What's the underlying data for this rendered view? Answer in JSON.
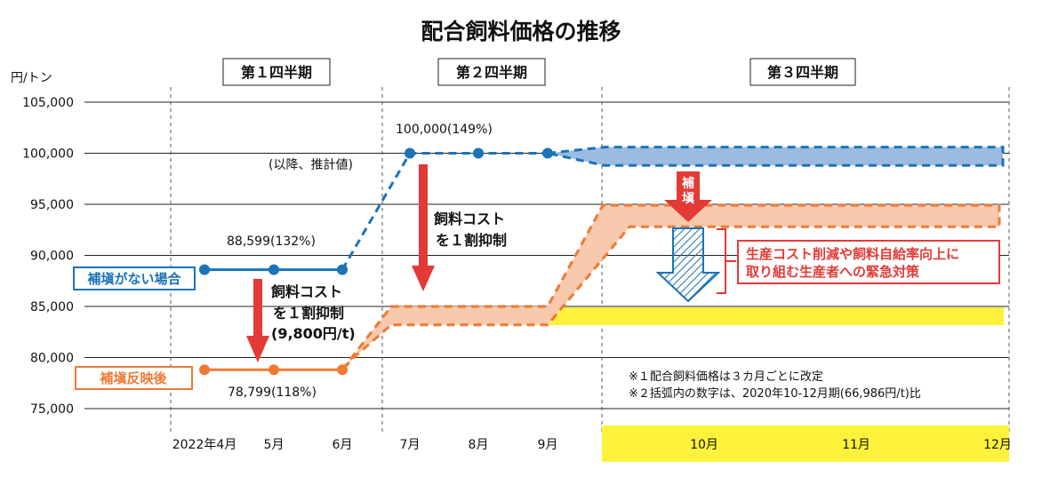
{
  "chart_data": {
    "type": "line",
    "title": "配合飼料価格の推移",
    "ylabel": "円/トン",
    "ylim": [
      75000,
      105000
    ],
    "yticks": [
      "105,000",
      "100,000",
      "95,000",
      "90,000",
      "85,000",
      "80,000",
      "75,000"
    ],
    "ytick_values": [
      105000,
      100000,
      95000,
      90000,
      85000,
      80000,
      75000
    ],
    "categories": [
      "2022年4月",
      "5月",
      "6月",
      "7月",
      "8月",
      "9月",
      "10月",
      "11月",
      "12月"
    ],
    "quarters": [
      "第１四半期",
      "第２四半期",
      "第３四半期"
    ],
    "grid": true,
    "series": [
      {
        "name": "補塡がない場合",
        "color": "#1b73b8",
        "values": [
          88599,
          88599,
          88599,
          100000,
          100000,
          100000,
          100000,
          100000,
          100000
        ],
        "actual_through_index": 2,
        "q3_band": [
          98800,
          100600
        ]
      },
      {
        "name": "補塡反映後",
        "color": "#ee7a33",
        "values": [
          78799,
          78799,
          78799,
          84000,
          84000,
          84000,
          93800,
          93800,
          93800
        ],
        "actual_through_index": 2,
        "q2_band": [
          83200,
          85000
        ],
        "q3_band": [
          92800,
          94900
        ]
      }
    ],
    "target_level": 84000,
    "annotations": {
      "point_no_subsidy": "88,599(132%)",
      "point_july": "100,000(149%)",
      "estimated_note": "(以降、推計値)",
      "point_subsidy": "78,799(118%)",
      "arrow_q1_line1": "飼料コスト",
      "arrow_q1_line2": "を１割抑制",
      "arrow_q1_line3": "(9,800円/t)",
      "arrow_q2_line1": "飼料コスト",
      "arrow_q2_line2": "を１割抑制",
      "subsidy_arrow_char1": "補",
      "subsidy_arrow_char2": "塡",
      "emergency_line1": "生産コスト削減や飼料自給率向上に",
      "emergency_line2": "取り組む生産者への緊急対策",
      "note1": "※１配合飼料価格は３カ月ごとに改定",
      "note2": "※２括弧内の数字は、2020年10-12月期(66,986円/t)比"
    },
    "colors": {
      "blue": "#1b73b8",
      "blue_band": "#9dbbe1",
      "orange": "#ee7a33",
      "orange_band": "#f9c9ad",
      "red": "#e33a36",
      "yellow": "#fff23b",
      "axis": "#111111"
    }
  }
}
